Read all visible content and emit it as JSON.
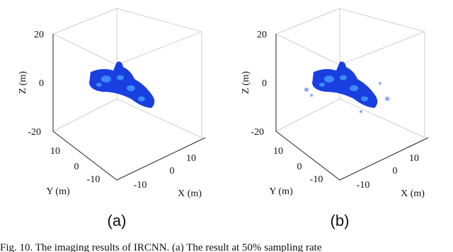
{
  "panels": [
    {
      "label": "(a)",
      "z_label": "Z (m)",
      "y_label": "Y (m)",
      "x_label": "X (m)",
      "z_ticks": [
        "20",
        "0",
        "-20"
      ],
      "y_ticks": [
        "10",
        "0",
        "-10"
      ],
      "x_ticks": [
        "10",
        "0",
        "-10"
      ]
    },
    {
      "label": "(b)",
      "z_label": "Z (m)",
      "y_label": "Y (m)",
      "x_label": "X (m)",
      "z_ticks": [
        "20",
        "0",
        "-20"
      ],
      "y_ticks": [
        "10",
        "0",
        "-10"
      ],
      "x_ticks": [
        "10",
        "0",
        "-10"
      ]
    }
  ],
  "caption": "Fig. 10.  The imaging results of IRCNN. (a) The result at 50% sampling rate"
}
